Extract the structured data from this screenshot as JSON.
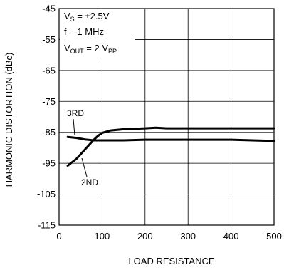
{
  "chart_data": {
    "type": "line",
    "xlabel": "LOAD RESISTANCE",
    "ylabel": "HARMONIC DISTORTION (dBc)",
    "xlim": [
      0,
      500
    ],
    "ylim": [
      -115,
      -45
    ],
    "x_ticks": [
      0,
      100,
      200,
      300,
      400,
      500
    ],
    "x_tick_labels": [
      "0",
      "100",
      "200",
      "300",
      "400",
      "500"
    ],
    "y_ticks": [
      -45,
      -55,
      -65,
      -75,
      -85,
      -95,
      -105,
      -115
    ],
    "y_tick_labels": [
      "-45",
      "-55",
      "-65",
      "-75",
      "-85",
      "-95",
      "-105",
      "-115"
    ],
    "grid": true,
    "conditions": {
      "vs": {
        "main": "V",
        "sub": "S",
        "rest": " = ±2.5V"
      },
      "f": "f = 1 MHz",
      "vout": {
        "main": "V",
        "sub": "OUT",
        "rest": " = 2 V",
        "sub2": "PP"
      }
    },
    "series": [
      {
        "name": "3RD",
        "x": [
          20,
          40,
          60,
          80,
          100,
          150,
          200,
          250,
          300,
          350,
          400,
          450,
          500
        ],
        "y": [
          -86.5,
          -86.8,
          -87.3,
          -87.6,
          -87.6,
          -87.6,
          -87.4,
          -87.4,
          -87.4,
          -87.4,
          -87.4,
          -87.6,
          -87.8
        ]
      },
      {
        "name": "2ND",
        "x": [
          20,
          40,
          60,
          80,
          90,
          100,
          120,
          150,
          200,
          225,
          250,
          300,
          350,
          400,
          450,
          500
        ],
        "y": [
          -95.8,
          -93.6,
          -90.6,
          -87.5,
          -86.2,
          -85.2,
          -84.4,
          -84.0,
          -83.7,
          -83.5,
          -83.7,
          -83.7,
          -83.7,
          -83.7,
          -83.7,
          -83.7
        ]
      }
    ]
  }
}
